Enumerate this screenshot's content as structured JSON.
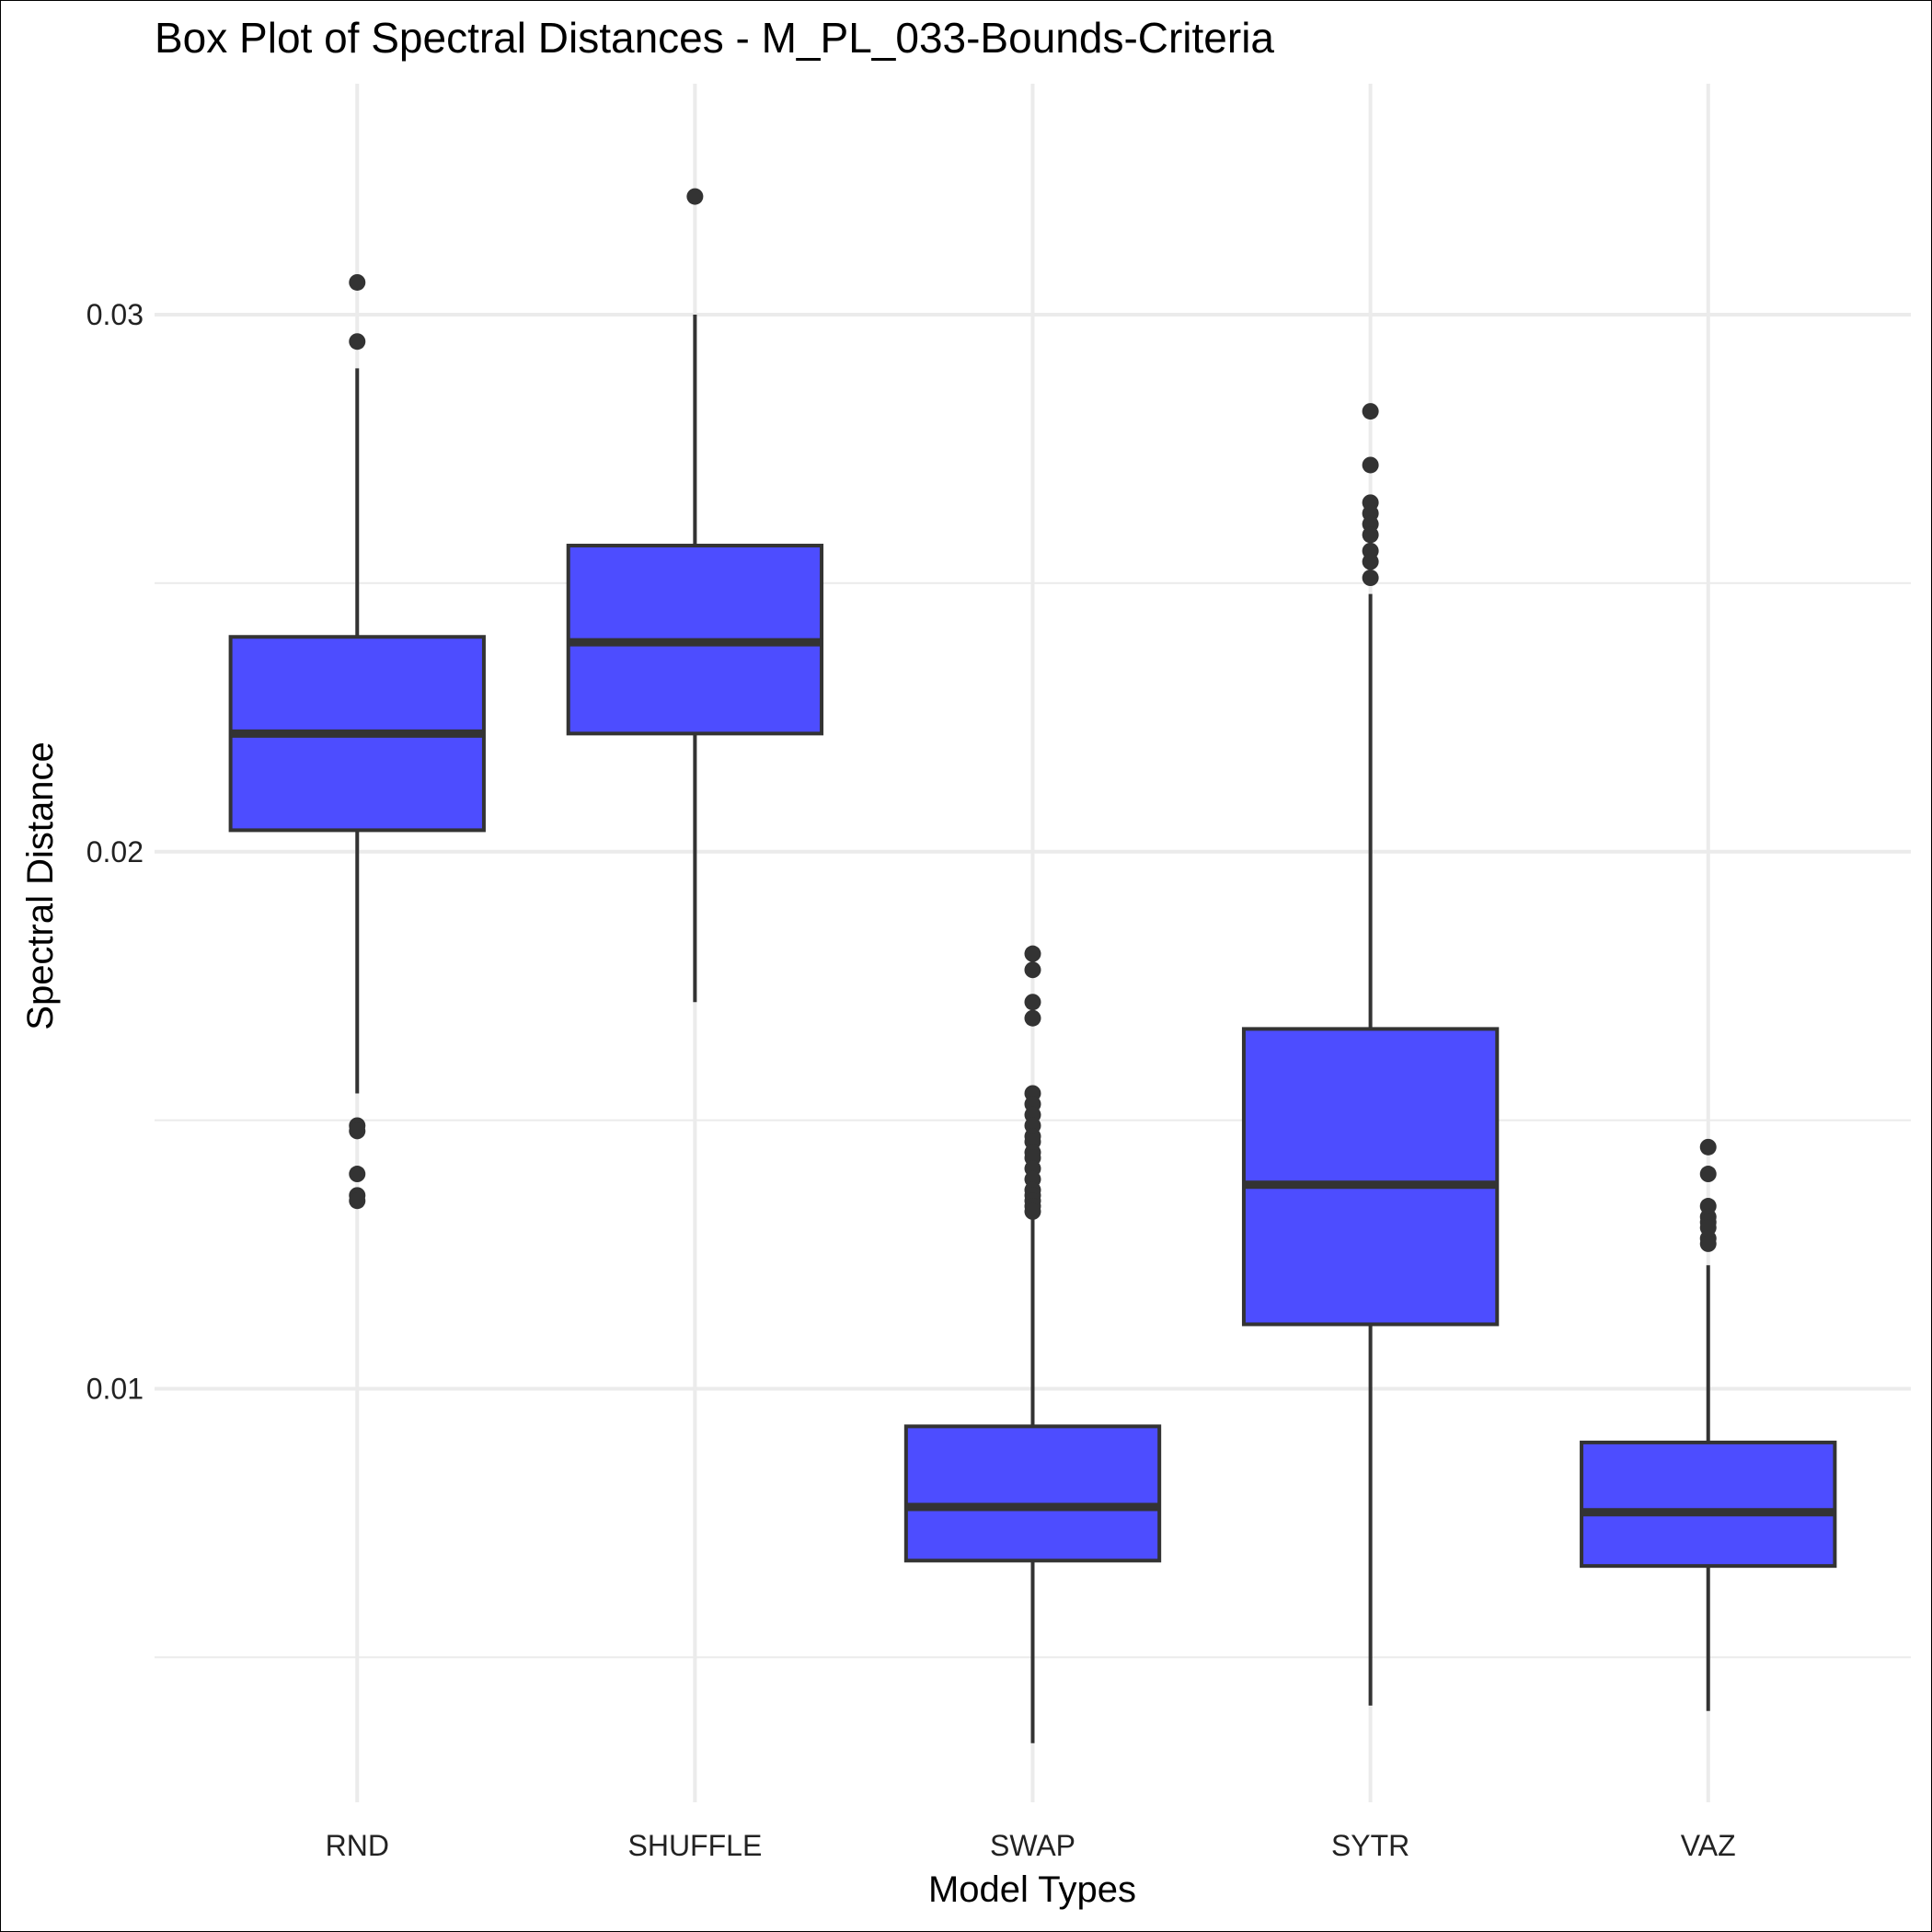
{
  "chart_data": {
    "type": "box",
    "title": "Box Plot of Spectral Distances -  M_PL_033-Bounds-Criteria",
    "xlabel": "Model Types",
    "ylabel": "Spectral Distance",
    "categories": [
      "RND",
      "SHUFFLE",
      "SWAP",
      "SYTR",
      "VAZ"
    ],
    "ylim": [
      0.0023,
      0.0343
    ],
    "y_ticks": [
      0.01,
      0.02,
      0.03
    ],
    "y_tick_labels": [
      "0.01",
      "0.02",
      "0.03"
    ],
    "y_minor_gridlines": [
      0.005,
      0.015,
      0.025
    ],
    "grid": true,
    "fill_color": "#4d4dff",
    "line_color": "#333333",
    "boxes": [
      {
        "category": "RND",
        "whisker_low": 0.0155,
        "q1": 0.0204,
        "median": 0.0222,
        "q3": 0.024,
        "whisker_high": 0.029,
        "outliers": [
          0.0306,
          0.0295,
          0.0149,
          0.0148,
          0.014,
          0.0136,
          0.0135
        ]
      },
      {
        "category": "SHUFFLE",
        "whisker_low": 0.0172,
        "q1": 0.0222,
        "median": 0.0239,
        "q3": 0.0257,
        "whisker_high": 0.03,
        "outliers": [
          0.0322
        ]
      },
      {
        "category": "SWAP",
        "whisker_low": 0.0034,
        "q1": 0.0068,
        "median": 0.0078,
        "q3": 0.0093,
        "whisker_high": 0.0132,
        "outliers": [
          0.0181,
          0.0178,
          0.0172,
          0.0169,
          0.0155,
          0.0153,
          0.0151,
          0.0149,
          0.0147,
          0.0146,
          0.0144,
          0.0143,
          0.0141,
          0.0139,
          0.0137,
          0.0136,
          0.0135,
          0.0134,
          0.0133
        ]
      },
      {
        "category": "SYTR",
        "whisker_low": 0.0041,
        "q1": 0.0112,
        "median": 0.0138,
        "q3": 0.0167,
        "whisker_high": 0.0248,
        "outliers": [
          0.0282,
          0.0272,
          0.0265,
          0.0263,
          0.0261,
          0.0259,
          0.0256,
          0.0254,
          0.0251
        ]
      },
      {
        "category": "VAZ",
        "whisker_low": 0.004,
        "q1": 0.0067,
        "median": 0.0077,
        "q3": 0.009,
        "whisker_high": 0.0123,
        "outliers": [
          0.0145,
          0.014,
          0.0134,
          0.0132,
          0.0131,
          0.013,
          0.0128,
          0.0127
        ]
      }
    ]
  }
}
